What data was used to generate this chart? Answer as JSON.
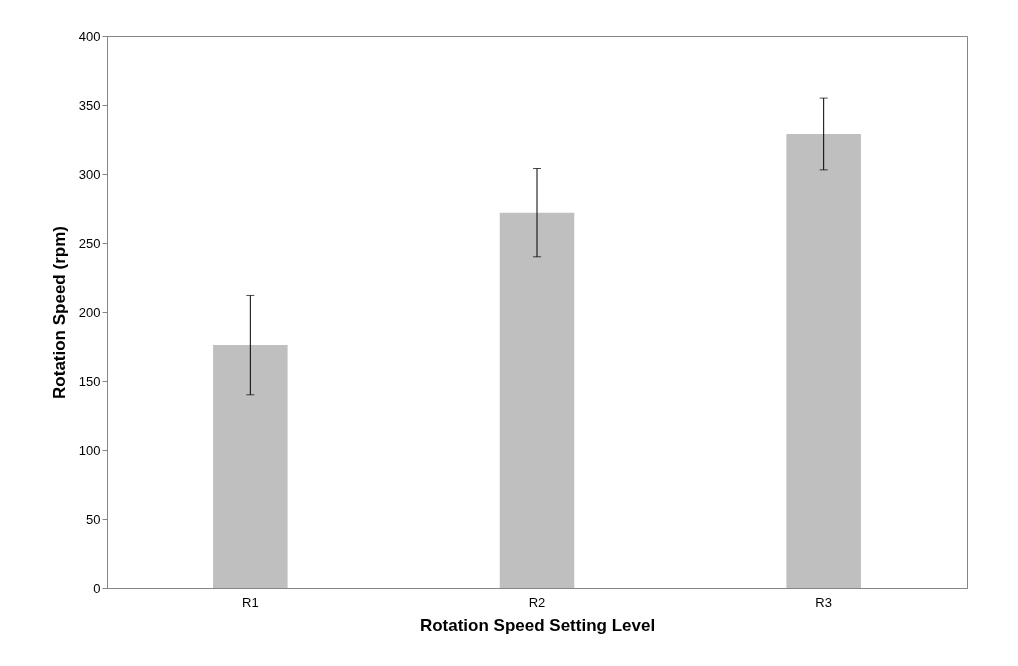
{
  "chart_data": {
    "type": "bar",
    "xlabel": "Rotation  Speed Setting Level",
    "ylabel": "Rotation  Speed (rpm)",
    "categories": [
      "R1",
      "R2",
      "R3"
    ],
    "values": [
      176,
      272,
      329
    ],
    "errors": [
      36,
      32,
      26
    ],
    "color": "#bfbfbf",
    "ylim": [
      0,
      400
    ],
    "yticks": [
      0,
      50,
      100,
      150,
      200,
      250,
      300,
      350,
      400
    ],
    "grid": false
  }
}
